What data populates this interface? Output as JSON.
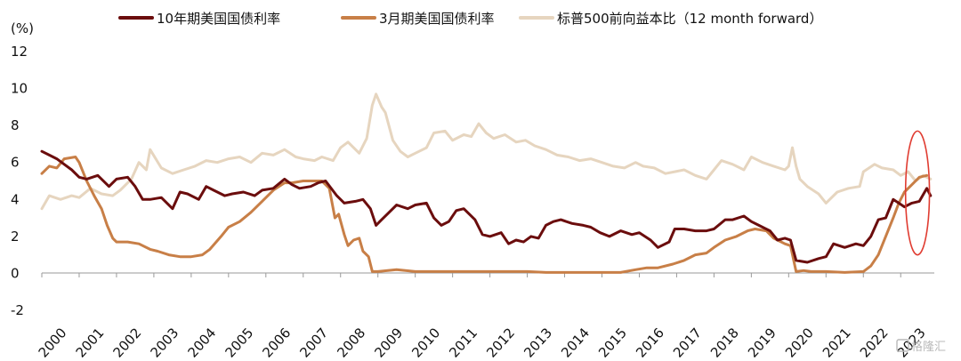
{
  "chart_data": {
    "type": "line",
    "unit_label": "(%)",
    "ylim": [
      -2,
      12
    ],
    "yticks": [
      "12",
      "10",
      "8",
      "6",
      "4",
      "2",
      "0",
      "-2"
    ],
    "xlim": [
      2000,
      2023.9
    ],
    "xticks": [
      "2000",
      "2001",
      "2002",
      "2003",
      "2004",
      "2005",
      "2006",
      "2007",
      "2008",
      "2009",
      "2010",
      "2011",
      "2012",
      "2013",
      "2014",
      "2015",
      "2016",
      "2017",
      "2018",
      "2019",
      "2020",
      "2021",
      "2022",
      "2023"
    ],
    "grid": false,
    "legend_position": "top",
    "series": [
      {
        "name": "10年期美国国债利率",
        "color": "#6b0d0d",
        "x": [
          2000.0,
          2000.2,
          2000.4,
          2000.6,
          2000.8,
          2001.0,
          2001.2,
          2001.5,
          2001.8,
          2002.0,
          2002.3,
          2002.5,
          2002.7,
          2002.9,
          2003.2,
          2003.5,
          2003.7,
          2003.9,
          2004.2,
          2004.4,
          2004.6,
          2004.9,
          2005.1,
          2005.4,
          2005.7,
          2005.9,
          2006.2,
          2006.5,
          2006.7,
          2006.9,
          2007.2,
          2007.4,
          2007.6,
          2007.9,
          2008.1,
          2008.4,
          2008.6,
          2008.8,
          2008.95,
          2009.1,
          2009.3,
          2009.5,
          2009.8,
          2010.0,
          2010.3,
          2010.5,
          2010.7,
          2010.9,
          2011.1,
          2011.3,
          2011.6,
          2011.8,
          2012.0,
          2012.3,
          2012.5,
          2012.7,
          2012.9,
          2013.1,
          2013.3,
          2013.5,
          2013.7,
          2013.9,
          2014.2,
          2014.5,
          2014.7,
          2014.95,
          2015.2,
          2015.5,
          2015.8,
          2016.0,
          2016.3,
          2016.5,
          2016.8,
          2016.95,
          2017.2,
          2017.5,
          2017.8,
          2018.0,
          2018.3,
          2018.5,
          2018.8,
          2019.0,
          2019.2,
          2019.5,
          2019.7,
          2019.9,
          2020.05,
          2020.2,
          2020.5,
          2020.8,
          2021.0,
          2021.2,
          2021.5,
          2021.8,
          2022.0,
          2022.2,
          2022.4,
          2022.6,
          2022.8,
          2022.95,
          2023.1,
          2023.3,
          2023.5,
          2023.7,
          2023.8
        ],
        "y": [
          6.6,
          6.4,
          6.2,
          5.9,
          5.6,
          5.2,
          5.1,
          5.3,
          4.7,
          5.1,
          5.2,
          4.7,
          4.0,
          4.0,
          4.1,
          3.5,
          4.4,
          4.3,
          4.0,
          4.7,
          4.5,
          4.2,
          4.3,
          4.4,
          4.2,
          4.5,
          4.6,
          5.1,
          4.8,
          4.6,
          4.7,
          4.9,
          5.0,
          4.2,
          3.8,
          3.9,
          4.0,
          3.5,
          2.6,
          2.9,
          3.3,
          3.7,
          3.5,
          3.7,
          3.8,
          3.0,
          2.6,
          2.8,
          3.4,
          3.5,
          2.9,
          2.1,
          2.0,
          2.2,
          1.6,
          1.8,
          1.7,
          2.0,
          1.9,
          2.6,
          2.8,
          2.9,
          2.7,
          2.6,
          2.5,
          2.2,
          2.0,
          2.3,
          2.1,
          2.2,
          1.8,
          1.4,
          1.7,
          2.4,
          2.4,
          2.3,
          2.3,
          2.4,
          2.9,
          2.9,
          3.1,
          2.8,
          2.6,
          2.3,
          1.8,
          1.9,
          1.8,
          0.7,
          0.6,
          0.8,
          0.9,
          1.6,
          1.4,
          1.6,
          1.5,
          2.0,
          2.9,
          3.0,
          4.0,
          3.8,
          3.6,
          3.8,
          3.9,
          4.6,
          4.2
        ]
      },
      {
        "name": "3月期美国国债利率",
        "color": "#c87f47",
        "x": [
          2000.0,
          2000.2,
          2000.4,
          2000.6,
          2000.9,
          2001.0,
          2001.2,
          2001.4,
          2001.6,
          2001.75,
          2001.9,
          2002.0,
          2002.3,
          2002.6,
          2002.9,
          2003.1,
          2003.4,
          2003.7,
          2004.0,
          2004.3,
          2004.5,
          2004.8,
          2005.0,
          2005.3,
          2005.6,
          2005.9,
          2006.2,
          2006.5,
          2006.7,
          2007.0,
          2007.3,
          2007.5,
          2007.7,
          2007.85,
          2007.95,
          2008.1,
          2008.2,
          2008.35,
          2008.5,
          2008.6,
          2008.75,
          2008.85,
          2009.0,
          2009.5,
          2010.0,
          2010.5,
          2011.0,
          2011.5,
          2012.0,
          2012.5,
          2013.0,
          2013.5,
          2014.0,
          2014.5,
          2015.0,
          2015.5,
          2015.9,
          2016.2,
          2016.5,
          2016.9,
          2017.2,
          2017.5,
          2017.8,
          2018.0,
          2018.3,
          2018.6,
          2018.9,
          2019.1,
          2019.4,
          2019.6,
          2019.9,
          2020.05,
          2020.2,
          2020.4,
          2020.6,
          2021.0,
          2021.5,
          2022.0,
          2022.2,
          2022.4,
          2022.6,
          2022.8,
          2022.95,
          2023.1,
          2023.3,
          2023.5,
          2023.7
        ],
        "y": [
          5.4,
          5.8,
          5.7,
          6.2,
          6.3,
          6.0,
          5.0,
          4.2,
          3.5,
          2.6,
          1.9,
          1.7,
          1.7,
          1.6,
          1.3,
          1.2,
          1.0,
          0.9,
          0.9,
          1.0,
          1.3,
          2.0,
          2.5,
          2.8,
          3.3,
          3.9,
          4.5,
          4.9,
          4.9,
          5.0,
          5.0,
          5.0,
          4.6,
          3.0,
          3.2,
          2.1,
          1.5,
          1.8,
          1.9,
          1.2,
          0.9,
          0.1,
          0.1,
          0.2,
          0.1,
          0.1,
          0.1,
          0.1,
          0.1,
          0.1,
          0.1,
          0.05,
          0.05,
          0.05,
          0.05,
          0.05,
          0.2,
          0.3,
          0.3,
          0.5,
          0.7,
          1.0,
          1.1,
          1.4,
          1.8,
          2.0,
          2.3,
          2.4,
          2.3,
          1.9,
          1.6,
          1.5,
          0.1,
          0.15,
          0.1,
          0.1,
          0.05,
          0.1,
          0.4,
          1.0,
          2.0,
          3.0,
          3.8,
          4.4,
          4.8,
          5.2,
          5.3
        ]
      },
      {
        "name": "标普500前向益本比（12 month forward）",
        "color": "#e6d5bf",
        "x": [
          2000.0,
          2000.2,
          2000.5,
          2000.8,
          2001.0,
          2001.3,
          2001.6,
          2001.9,
          2002.1,
          2002.4,
          2002.6,
          2002.8,
          2002.9,
          2003.2,
          2003.5,
          2003.8,
          2004.1,
          2004.4,
          2004.7,
          2005.0,
          2005.3,
          2005.6,
          2005.9,
          2006.2,
          2006.5,
          2006.8,
          2007.0,
          2007.3,
          2007.5,
          2007.8,
          2008.0,
          2008.2,
          2008.5,
          2008.7,
          2008.85,
          2008.95,
          2009.1,
          2009.2,
          2009.4,
          2009.6,
          2009.8,
          2010.0,
          2010.3,
          2010.5,
          2010.8,
          2011.0,
          2011.3,
          2011.5,
          2011.7,
          2011.9,
          2012.1,
          2012.4,
          2012.7,
          2012.95,
          2013.2,
          2013.5,
          2013.8,
          2014.1,
          2014.4,
          2014.7,
          2015.0,
          2015.3,
          2015.6,
          2015.9,
          2016.1,
          2016.4,
          2016.7,
          2016.95,
          2017.2,
          2017.5,
          2017.8,
          2018.0,
          2018.2,
          2018.5,
          2018.8,
          2019.0,
          2019.3,
          2019.6,
          2019.9,
          2020.0,
          2020.1,
          2020.2,
          2020.3,
          2020.5,
          2020.8,
          2021.0,
          2021.3,
          2021.6,
          2021.9,
          2022.0,
          2022.3,
          2022.5,
          2022.8,
          2023.0,
          2023.2,
          2023.4,
          2023.6,
          2023.8
        ],
        "y": [
          3.5,
          4.2,
          4.0,
          4.2,
          4.1,
          4.6,
          4.3,
          4.2,
          4.5,
          5.1,
          6.0,
          5.6,
          6.7,
          5.7,
          5.4,
          5.6,
          5.8,
          6.1,
          6.0,
          6.2,
          6.3,
          6.0,
          6.5,
          6.4,
          6.7,
          6.3,
          6.2,
          6.1,
          6.3,
          6.1,
          6.8,
          7.1,
          6.5,
          7.3,
          9.1,
          9.7,
          9.0,
          8.7,
          7.2,
          6.6,
          6.3,
          6.5,
          6.8,
          7.6,
          7.7,
          7.2,
          7.5,
          7.4,
          8.1,
          7.6,
          7.3,
          7.5,
          7.1,
          7.2,
          6.9,
          6.7,
          6.4,
          6.3,
          6.1,
          6.2,
          6.0,
          5.8,
          5.7,
          6.0,
          5.8,
          5.7,
          5.4,
          5.5,
          5.6,
          5.3,
          5.1,
          5.6,
          6.1,
          5.9,
          5.6,
          6.3,
          6.0,
          5.8,
          5.6,
          5.8,
          6.8,
          5.8,
          5.1,
          4.7,
          4.3,
          3.8,
          4.4,
          4.6,
          4.7,
          5.5,
          5.9,
          5.7,
          5.6,
          5.3,
          5.5,
          5.0,
          5.3,
          5.1
        ]
      }
    ],
    "annotation": {
      "shape": "ellipse",
      "color": "#e03c31",
      "x_center": 2023.45,
      "y_center": 4.35,
      "x_radius": 0.32,
      "y_radius": 3.35
    }
  },
  "watermark": {
    "text": "格隆汇"
  }
}
